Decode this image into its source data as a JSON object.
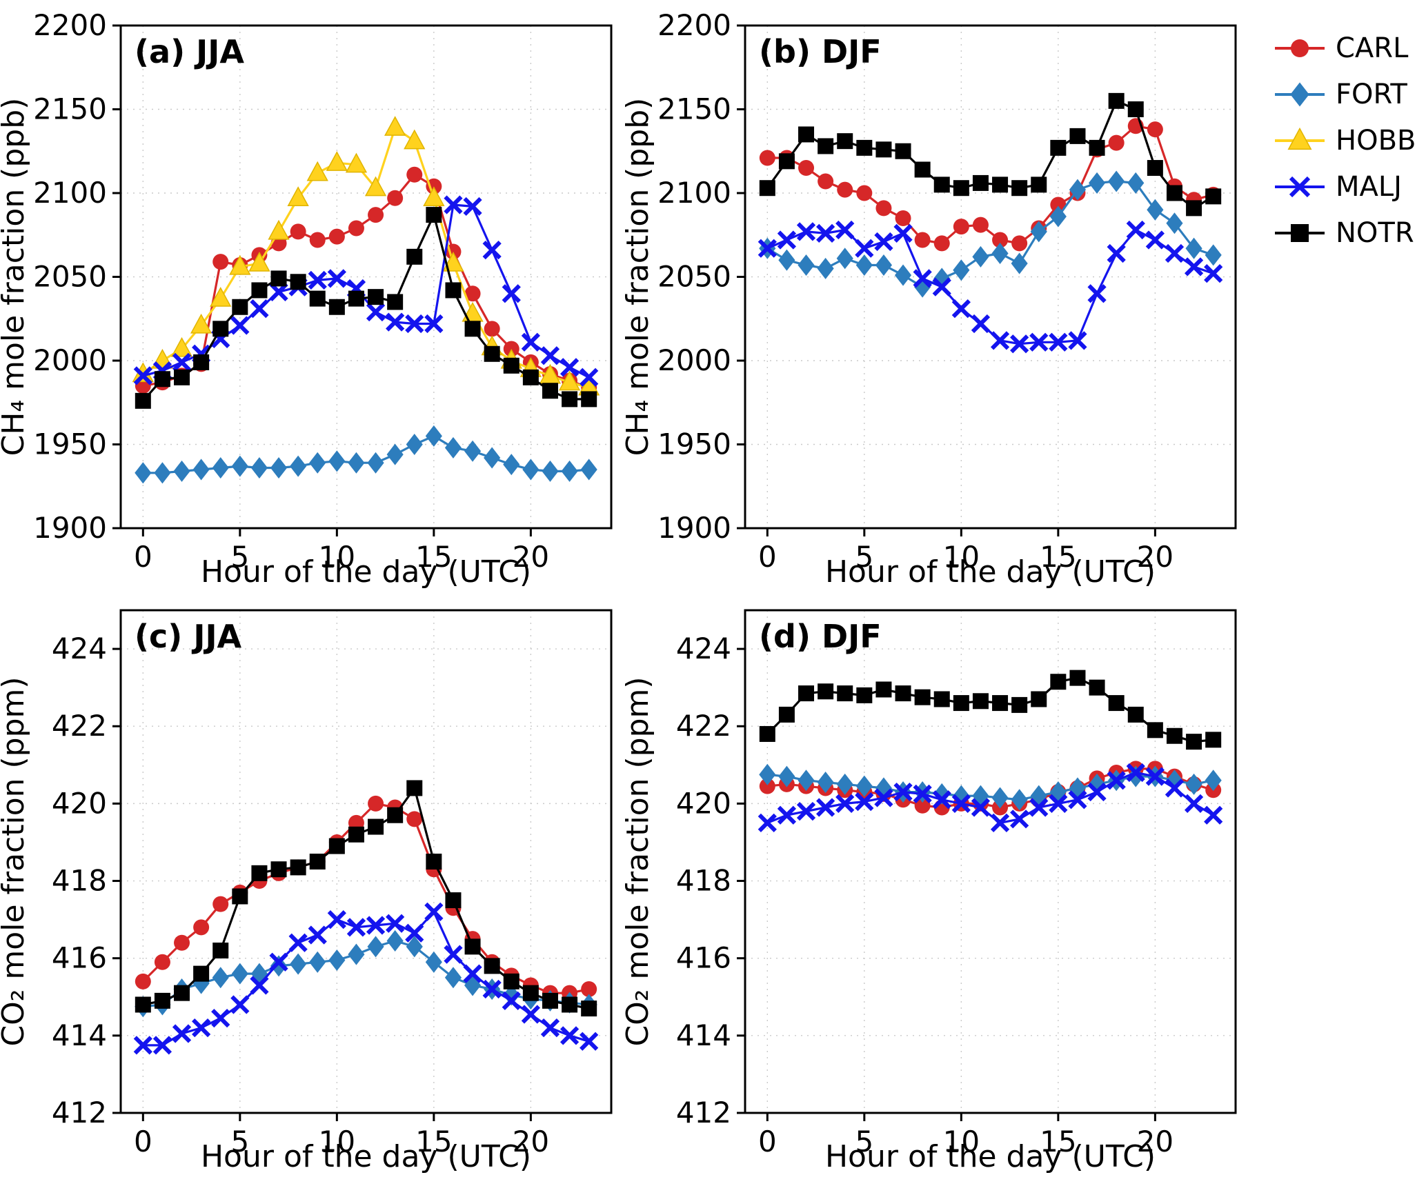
{
  "figure": {
    "background": "#ffffff"
  },
  "colors": {
    "axis": "#000000",
    "grid": "#c9c9c9",
    "text": "#000000"
  },
  "legend": {
    "entries": [
      {
        "label": "CARL",
        "color": "#d62728",
        "marker": "circle"
      },
      {
        "label": "FORT",
        "color": "#2d7dbd",
        "marker": "diamond"
      },
      {
        "label": "HOBB",
        "color": "#ffd21e",
        "marker": "triangle"
      },
      {
        "label": "MALJ",
        "color": "#1414ee",
        "marker": "x"
      },
      {
        "label": "NOTR",
        "color": "#000000",
        "marker": "square"
      }
    ]
  },
  "chart_data": [
    {
      "id": "a",
      "type": "line",
      "title": "(a) JJA",
      "xlabel": "Hour of the day (UTC)",
      "ylabel": "CH₄ mole fraction (ppb)",
      "x": [
        0,
        1,
        2,
        3,
        4,
        5,
        6,
        7,
        8,
        9,
        10,
        11,
        12,
        13,
        14,
        15,
        16,
        17,
        18,
        19,
        20,
        21,
        22,
        23
      ],
      "xlim": [
        -1.15,
        24.15
      ],
      "ylim": [
        1900,
        2200
      ],
      "xticks": [
        0,
        5,
        10,
        15,
        20
      ],
      "yticks": [
        1900,
        1950,
        2000,
        2050,
        2100,
        2150,
        2200
      ],
      "grid": true,
      "series": [
        {
          "name": "CARL",
          "values": [
            1985,
            1987,
            1991,
            1998,
            2059,
            2057,
            2063,
            2070,
            2077,
            2072,
            2074,
            2079,
            2087,
            2097,
            2111,
            2104,
            2065,
            2040,
            2019,
            2007,
            1999,
            1992,
            1988,
            1984
          ]
        },
        {
          "name": "FORT",
          "values": [
            1933,
            1933,
            1934,
            1935,
            1936,
            1937,
            1936,
            1936,
            1937,
            1939,
            1940,
            1939,
            1939,
            1944,
            1950,
            1955,
            1948,
            1946,
            1942,
            1938,
            1935,
            1934,
            1934,
            1935
          ]
        },
        {
          "name": "HOBB",
          "values": [
            1992,
            2000,
            2007,
            2021,
            2037,
            2056,
            2058,
            2077,
            2097,
            2112,
            2118,
            2117,
            2103,
            2139,
            2131,
            2097,
            2058,
            2028,
            2008,
            2000,
            1995,
            1991,
            1987,
            1984
          ]
        },
        {
          "name": "MALJ",
          "values": [
            1991,
            1994,
            1999,
            2004,
            2013,
            2021,
            2031,
            2041,
            2044,
            2048,
            2049,
            2043,
            2029,
            2023,
            2022,
            2022,
            2093,
            2092,
            2066,
            2040,
            2011,
            2003,
            1996,
            1990
          ]
        },
        {
          "name": "NOTR",
          "values": [
            1976,
            1989,
            1990,
            1999,
            2019,
            2032,
            2042,
            2049,
            2047,
            2037,
            2032,
            2037,
            2038,
            2035,
            2062,
            2087,
            2042,
            2019,
            2004,
            1997,
            1990,
            1982,
            1977,
            1977
          ]
        }
      ]
    },
    {
      "id": "b",
      "type": "line",
      "title": "(b) DJF",
      "xlabel": "Hour of the day (UTC)",
      "ylabel": "CH₄ mole fraction (ppb)",
      "x": [
        0,
        1,
        2,
        3,
        4,
        5,
        6,
        7,
        8,
        9,
        10,
        11,
        12,
        13,
        14,
        15,
        16,
        17,
        18,
        19,
        20,
        21,
        22,
        23
      ],
      "xlim": [
        -1.15,
        24.15
      ],
      "ylim": [
        1900,
        2200
      ],
      "xticks": [
        0,
        5,
        10,
        15,
        20
      ],
      "yticks": [
        1900,
        1950,
        2000,
        2050,
        2100,
        2150,
        2200
      ],
      "grid": true,
      "series": [
        {
          "name": "CARL",
          "values": [
            2121,
            2121,
            2115,
            2107,
            2102,
            2100,
            2091,
            2085,
            2072,
            2070,
            2080,
            2081,
            2072,
            2070,
            2079,
            2093,
            2100,
            2126,
            2130,
            2140,
            2138,
            2104,
            2096,
            2099
          ]
        },
        {
          "name": "FORT",
          "values": [
            2067,
            2060,
            2057,
            2055,
            2061,
            2057,
            2057,
            2051,
            2044,
            2049,
            2054,
            2062,
            2064,
            2058,
            2077,
            2086,
            2102,
            2106,
            2107,
            2106,
            2090,
            2082,
            2067,
            2063
          ]
        },
        {
          "name": "MALJ",
          "values": [
            2067,
            2072,
            2077,
            2076,
            2078,
            2067,
            2071,
            2076,
            2049,
            2044,
            2031,
            2022,
            2012,
            2010,
            2011,
            2011,
            2012,
            2040,
            2064,
            2078,
            2072,
            2064,
            2056,
            2052
          ]
        },
        {
          "name": "NOTR",
          "values": [
            2103,
            2119,
            2135,
            2128,
            2131,
            2127,
            2126,
            2125,
            2114,
            2105,
            2103,
            2106,
            2105,
            2103,
            2105,
            2127,
            2134,
            2127,
            2155,
            2150,
            2115,
            2100,
            2091,
            2098
          ]
        }
      ]
    },
    {
      "id": "c",
      "type": "line",
      "title": "(c) JJA",
      "xlabel": "Hour of the day (UTC)",
      "ylabel": "CO₂ mole fraction (ppm)",
      "x": [
        0,
        1,
        2,
        3,
        4,
        5,
        6,
        7,
        8,
        9,
        10,
        11,
        12,
        13,
        14,
        15,
        16,
        17,
        18,
        19,
        20,
        21,
        22,
        23
      ],
      "xlim": [
        -1.15,
        24.15
      ],
      "ylim": [
        412,
        425
      ],
      "xticks": [
        0,
        5,
        10,
        15,
        20
      ],
      "yticks": [
        412,
        414,
        416,
        418,
        420,
        422,
        424
      ],
      "grid": true,
      "series": [
        {
          "name": "CARL",
          "values": [
            415.4,
            415.9,
            416.4,
            416.8,
            417.4,
            417.7,
            418.0,
            418.2,
            418.35,
            418.5,
            419.0,
            419.5,
            420.0,
            419.9,
            419.6,
            418.3,
            417.3,
            416.5,
            415.9,
            415.55,
            415.3,
            415.1,
            415.1,
            415.2
          ]
        },
        {
          "name": "FORT",
          "values": [
            414.75,
            414.8,
            415.2,
            415.35,
            415.5,
            415.6,
            415.6,
            415.8,
            415.85,
            415.9,
            415.95,
            416.1,
            416.3,
            416.45,
            416.3,
            415.9,
            415.5,
            415.3,
            415.2,
            415.05,
            414.95,
            414.9,
            414.85,
            414.8
          ]
        },
        {
          "name": "MALJ",
          "values": [
            413.75,
            413.75,
            414.05,
            414.2,
            414.45,
            414.8,
            415.3,
            415.9,
            416.4,
            416.6,
            417.0,
            416.8,
            416.85,
            416.9,
            416.65,
            417.2,
            416.1,
            415.6,
            415.2,
            414.9,
            414.55,
            414.2,
            414.0,
            413.85
          ]
        },
        {
          "name": "NOTR",
          "values": [
            414.8,
            414.9,
            415.1,
            415.6,
            416.2,
            417.6,
            418.2,
            418.3,
            418.35,
            418.5,
            418.9,
            419.2,
            419.4,
            419.7,
            420.4,
            418.5,
            417.5,
            416.3,
            415.8,
            415.4,
            415.1,
            414.9,
            414.8,
            414.7
          ]
        }
      ]
    },
    {
      "id": "d",
      "type": "line",
      "title": "(d) DJF",
      "xlabel": "Hour of the day (UTC)",
      "ylabel": "CO₂ mole fraction (ppm)",
      "x": [
        0,
        1,
        2,
        3,
        4,
        5,
        6,
        7,
        8,
        9,
        10,
        11,
        12,
        13,
        14,
        15,
        16,
        17,
        18,
        19,
        20,
        21,
        22,
        23
      ],
      "xlim": [
        -1.15,
        24.15
      ],
      "ylim": [
        412,
        425
      ],
      "xticks": [
        0,
        5,
        10,
        15,
        20
      ],
      "yticks": [
        412,
        414,
        416,
        418,
        420,
        422,
        424
      ],
      "grid": true,
      "series": [
        {
          "name": "CARL",
          "values": [
            420.45,
            420.5,
            420.45,
            420.4,
            420.35,
            420.3,
            420.25,
            420.1,
            419.95,
            419.9,
            420.0,
            420.0,
            419.9,
            420.0,
            420.1,
            420.3,
            420.4,
            420.65,
            420.8,
            420.9,
            420.9,
            420.7,
            420.5,
            420.35
          ]
        },
        {
          "name": "FORT",
          "values": [
            420.75,
            420.7,
            420.6,
            420.55,
            420.5,
            420.45,
            420.4,
            420.3,
            420.3,
            420.25,
            420.2,
            420.2,
            420.15,
            420.1,
            420.2,
            420.3,
            420.4,
            420.5,
            420.6,
            420.7,
            420.7,
            420.6,
            420.5,
            420.6
          ]
        },
        {
          "name": "MALJ",
          "values": [
            419.5,
            419.7,
            419.8,
            419.9,
            420.0,
            420.05,
            420.15,
            420.3,
            420.25,
            420.1,
            420.0,
            419.9,
            419.5,
            419.6,
            419.9,
            420.0,
            420.1,
            420.3,
            420.6,
            420.8,
            420.7,
            420.4,
            420.0,
            419.7
          ]
        },
        {
          "name": "NOTR",
          "values": [
            421.8,
            422.3,
            422.85,
            422.9,
            422.85,
            422.8,
            422.95,
            422.85,
            422.75,
            422.7,
            422.6,
            422.65,
            422.6,
            422.55,
            422.7,
            423.15,
            423.25,
            423.0,
            422.6,
            422.3,
            421.9,
            421.75,
            421.6,
            421.65
          ]
        }
      ]
    }
  ]
}
